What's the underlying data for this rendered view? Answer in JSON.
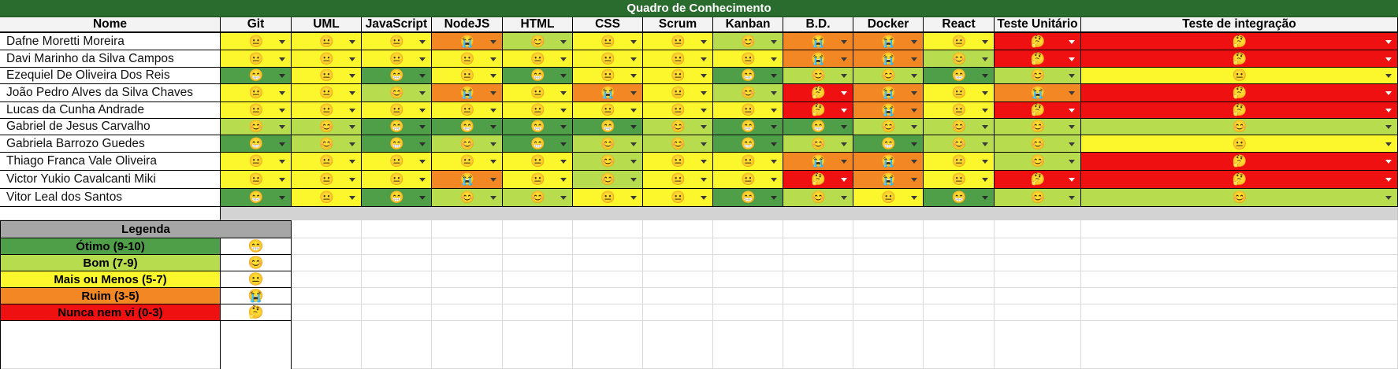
{
  "sheet": {
    "title": "Quadro de Conhecimento",
    "name_header": "Nome",
    "skills": [
      "Git",
      "UML",
      "JavaScript",
      "NodeJS",
      "HTML",
      "CSS",
      "Scrum",
      "Kanban",
      "B.D.",
      "Docker",
      "React",
      "Teste Unitário",
      "Teste de integração"
    ],
    "rows": [
      {
        "name": "Dafne Moretti Moreira",
        "levels": [
          "mais",
          "mais",
          "mais",
          "ruim",
          "bom",
          "mais",
          "mais",
          "bom",
          "ruim",
          "ruim",
          "mais",
          "nunca",
          "nunca"
        ]
      },
      {
        "name": "Davi Marinho da Silva Campos",
        "levels": [
          "mais",
          "mais",
          "mais",
          "mais",
          "mais",
          "mais",
          "mais",
          "mais",
          "ruim",
          "ruim",
          "bom",
          "nunca",
          "nunca"
        ]
      },
      {
        "name": "Ezequiel De Oliveira Dos Reis",
        "levels": [
          "otimo",
          "mais",
          "otimo",
          "mais",
          "otimo",
          "mais",
          "mais",
          "otimo",
          "bom",
          "bom",
          "otimo",
          "bom",
          "mais"
        ]
      },
      {
        "name": "João Pedro Alves da Silva Chaves",
        "levels": [
          "mais",
          "mais",
          "bom",
          "ruim",
          "mais",
          "ruim",
          "mais",
          "bom",
          "nunca",
          "ruim",
          "mais",
          "ruim",
          "nunca"
        ]
      },
      {
        "name": "Lucas da Cunha Andrade",
        "levels": [
          "mais",
          "mais",
          "mais",
          "mais",
          "mais",
          "mais",
          "mais",
          "mais",
          "nunca",
          "ruim",
          "mais",
          "nunca",
          "nunca"
        ]
      },
      {
        "name": "Gabriel de Jesus Carvalho",
        "levels": [
          "bom",
          "bom",
          "otimo",
          "otimo",
          "otimo",
          "otimo",
          "bom",
          "otimo",
          "otimo",
          "bom",
          "bom",
          "bom",
          "bom"
        ]
      },
      {
        "name": "Gabriela Barrozo Guedes",
        "levels": [
          "otimo",
          "bom",
          "otimo",
          "bom",
          "otimo",
          "bom",
          "bom",
          "otimo",
          "bom",
          "otimo",
          "bom",
          "bom",
          "mais"
        ]
      },
      {
        "name": "Thiago Franca Vale Oliveira",
        "levels": [
          "mais",
          "mais",
          "mais",
          "mais",
          "mais",
          "bom",
          "mais",
          "mais",
          "ruim",
          "ruim",
          "mais",
          "bom",
          "nunca"
        ]
      },
      {
        "name": "Victor Yukio Cavalcanti Miki",
        "levels": [
          "mais",
          "mais",
          "mais",
          "ruim",
          "mais",
          "bom",
          "mais",
          "mais",
          "nunca",
          "ruim",
          "mais",
          "nunca",
          "nunca"
        ]
      },
      {
        "name": "Vitor Leal dos Santos",
        "levels": [
          "otimo",
          "mais",
          "otimo",
          "bom",
          "bom",
          "mais",
          "mais",
          "otimo",
          "bom",
          "mais",
          "otimo",
          "bom",
          "bom"
        ]
      }
    ]
  },
  "legend": {
    "title": "Legenda",
    "items": [
      {
        "key": "otimo",
        "label": "Ótimo (9-10)"
      },
      {
        "key": "bom",
        "label": "Bom (7-9)"
      },
      {
        "key": "mais",
        "label": "Mais ou Menos (5-7)"
      },
      {
        "key": "ruim",
        "label": "Ruim (3-5)"
      },
      {
        "key": "nunca",
        "label": "Nunca nem vi (0-3)"
      }
    ]
  },
  "levels": {
    "otimo": {
      "emoji": "😁",
      "color": "#4f9e48",
      "arrow": "#2d2d2d"
    },
    "bom": {
      "emoji": "😊",
      "color": "#b7dc4d",
      "arrow": "#3a3a3a"
    },
    "mais": {
      "emoji": "😐",
      "color": "#fbf72c",
      "arrow": "#3a3a3a"
    },
    "ruim": {
      "emoji": "😭",
      "color": "#f38724",
      "arrow": "#3a3a3a"
    },
    "nunca": {
      "emoji": "🤔",
      "color": "#ef1111",
      "arrow": "#ffffff"
    }
  }
}
